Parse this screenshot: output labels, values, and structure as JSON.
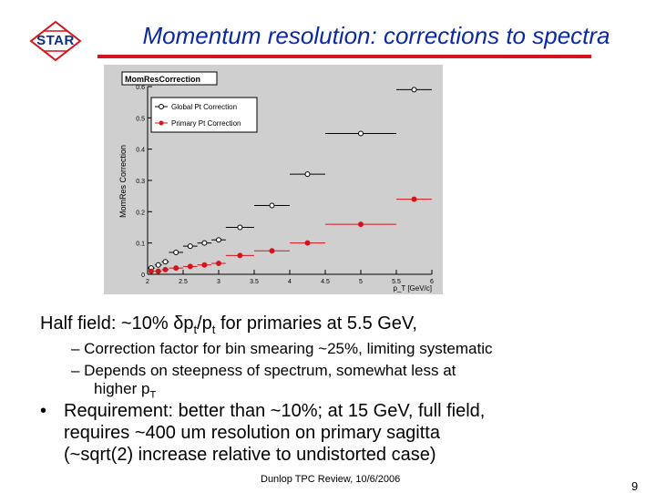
{
  "logo": {
    "text": "STAR"
  },
  "slide": {
    "title": "Momentum resolution: corrections to spectra"
  },
  "plot": {
    "panel_title": "MomResCorrection",
    "y_axis_label": "MomRes Correction",
    "x_axis_label": "p_T [GeV/c]",
    "legend": [
      {
        "label": "Global Pt Correction"
      },
      {
        "label": "Primary Pt Correction"
      }
    ]
  },
  "chart_data": {
    "type": "scatter",
    "title": "MomResCorrection",
    "xlabel": "p_T [GeV/c]",
    "ylabel": "MomRes Correction",
    "xlim": [
      2,
      6
    ],
    "ylim": [
      0,
      0.6
    ],
    "x_ticks": [
      "2",
      "2.5",
      "3",
      "3.5",
      "4",
      "4.5",
      "5",
      "5.5",
      "6"
    ],
    "y_ticks": [
      "0",
      "0.1",
      "0.2",
      "0.3",
      "0.4",
      "0.5",
      "0.6"
    ],
    "grid": false,
    "legend_position": "top-left",
    "series": [
      {
        "name": "Global Pt Correction",
        "marker": "open-circle",
        "color": "#000000",
        "points": [
          {
            "x": 2.05,
            "xlo": 2.0,
            "xhi": 2.1,
            "y": 0.02
          },
          {
            "x": 2.15,
            "xlo": 2.1,
            "xhi": 2.2,
            "y": 0.03
          },
          {
            "x": 2.25,
            "xlo": 2.2,
            "xhi": 2.3,
            "y": 0.04
          },
          {
            "x": 2.4,
            "xlo": 2.3,
            "xhi": 2.5,
            "y": 0.07
          },
          {
            "x": 2.6,
            "xlo": 2.5,
            "xhi": 2.7,
            "y": 0.09
          },
          {
            "x": 2.8,
            "xlo": 2.7,
            "xhi": 2.9,
            "y": 0.1
          },
          {
            "x": 3.0,
            "xlo": 2.9,
            "xhi": 3.1,
            "y": 0.11
          },
          {
            "x": 3.3,
            "xlo": 3.1,
            "xhi": 3.5,
            "y": 0.15
          },
          {
            "x": 3.75,
            "xlo": 3.5,
            "xhi": 4.0,
            "y": 0.22
          },
          {
            "x": 4.25,
            "xlo": 4.0,
            "xhi": 4.5,
            "y": 0.32
          },
          {
            "x": 5.0,
            "xlo": 4.5,
            "xhi": 5.5,
            "y": 0.45
          },
          {
            "x": 5.75,
            "xlo": 5.5,
            "xhi": 6.0,
            "y": 0.59
          }
        ]
      },
      {
        "name": "Primary Pt Correction",
        "marker": "filled-circle",
        "color": "#d4141c",
        "points": [
          {
            "x": 2.05,
            "xlo": 2.0,
            "xhi": 2.1,
            "y": 0.01
          },
          {
            "x": 2.15,
            "xlo": 2.1,
            "xhi": 2.2,
            "y": 0.01
          },
          {
            "x": 2.25,
            "xlo": 2.2,
            "xhi": 2.3,
            "y": 0.015
          },
          {
            "x": 2.4,
            "xlo": 2.3,
            "xhi": 2.5,
            "y": 0.02
          },
          {
            "x": 2.6,
            "xlo": 2.5,
            "xhi": 2.7,
            "y": 0.025
          },
          {
            "x": 2.8,
            "xlo": 2.7,
            "xhi": 2.9,
            "y": 0.03
          },
          {
            "x": 3.0,
            "xlo": 2.9,
            "xhi": 3.1,
            "y": 0.035
          },
          {
            "x": 3.3,
            "xlo": 3.1,
            "xhi": 3.5,
            "y": 0.06
          },
          {
            "x": 3.75,
            "xlo": 3.5,
            "xhi": 4.0,
            "y": 0.075
          },
          {
            "x": 4.25,
            "xlo": 4.0,
            "xhi": 4.5,
            "y": 0.1
          },
          {
            "x": 5.0,
            "xlo": 4.5,
            "xhi": 5.5,
            "y": 0.16
          },
          {
            "x": 5.75,
            "xlo": 5.5,
            "xhi": 6.0,
            "y": 0.24
          }
        ]
      }
    ]
  },
  "body": {
    "half_field": {
      "prefix": "Half field:  ~10% ",
      "delta": "δ",
      "p": "p",
      "t_sub": "t",
      "slash_p": "/p",
      "t_sub2": "t",
      "suffix": " for primaries at 5.5 GeV,"
    },
    "sub_bullets": [
      "–  Correction factor for bin smearing ~25%, limiting systematic",
      "–  Depends on steepness of spectrum, somewhat less at",
      "higher p",
      "T"
    ],
    "bullet_marker": "•",
    "requirement_lines": [
      "Requirement: better than ~10%; at 15 GeV, full field,",
      "requires ~400 um resolution on primary sagitta",
      "(~sqrt(2) increase relative to undistorted case)"
    ]
  },
  "footer": {
    "text": "Dunlop TPC Review, 10/6/2006",
    "page": "9"
  }
}
